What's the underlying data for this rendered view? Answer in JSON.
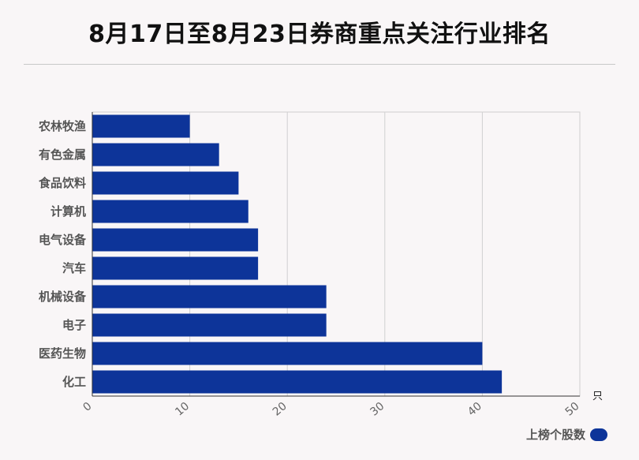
{
  "chart_data": {
    "type": "bar",
    "orientation": "horizontal",
    "title": "8月17日至8月23日券商重点关注行业排名",
    "categories": [
      "农林牧渔",
      "有色金属",
      "食品饮料",
      "计算机",
      "电气设备",
      "汽车",
      "机械设备",
      "电子",
      "医药生物",
      "化工"
    ],
    "series": [
      {
        "name": "上榜个股数",
        "values": [
          10,
          13,
          15,
          16,
          17,
          17,
          24,
          24,
          40,
          42
        ],
        "color": "#0d3499"
      }
    ],
    "xlim": [
      0,
      50
    ],
    "xticks": [
      "0",
      "10",
      "20",
      "30",
      "40",
      "50"
    ],
    "xunit": "只",
    "grid": true,
    "legend_position": "bottom-right"
  }
}
